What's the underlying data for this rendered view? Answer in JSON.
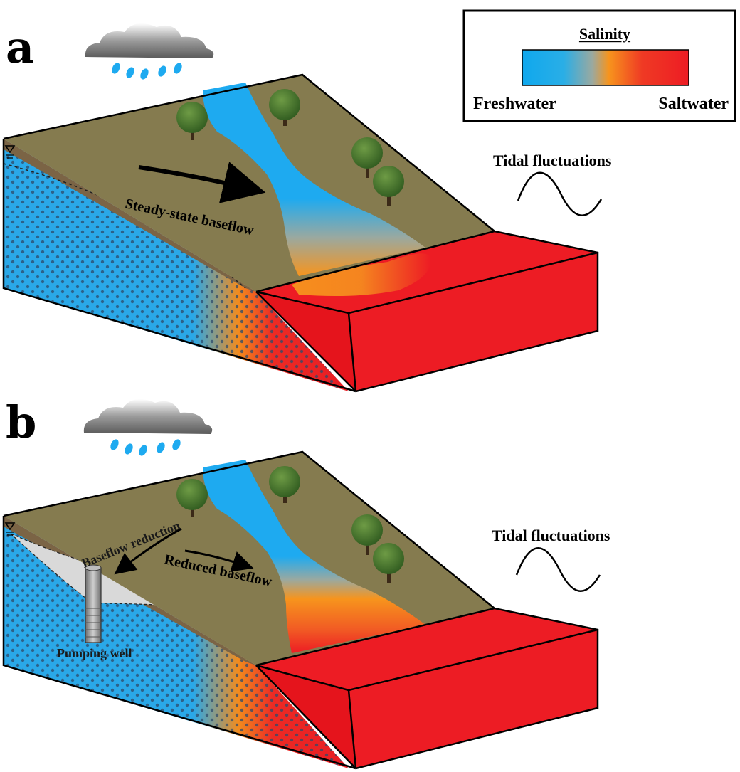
{
  "panels": [
    {
      "letter": "a",
      "flow_label": "Steady-state baseflow",
      "tide_label": "Tidal fluctuations"
    },
    {
      "letter": "b",
      "flow_label": "Reduced baseflow",
      "reduction_label": "Baseflow reduction",
      "well_label": "Pumping well",
      "tide_label": "Tidal fluctuations"
    }
  ],
  "legend": {
    "title": "Salinity",
    "low_label": "Freshwater",
    "high_label": "Saltwater",
    "colors": [
      "#1aa7e8",
      "#4fb3d8",
      "#f7941d",
      "#ee3124",
      "#ed1c24"
    ]
  },
  "colors": {
    "land_surface": "#857b4f",
    "freshwater": "#1eaaf0",
    "saltwater": "#ee1c24",
    "soil_edge": "#6b5a3e",
    "cone_of_depression": "#d9d9d9"
  }
}
